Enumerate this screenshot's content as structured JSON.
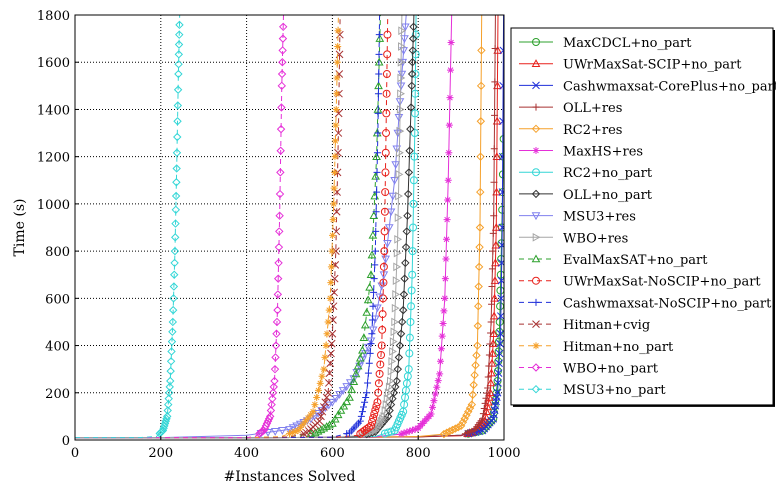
{
  "chart_data": {
    "type": "line",
    "title": "",
    "xlabel": "#Instances Solved",
    "ylabel": "Time (s)",
    "xlim": [
      0,
      1000
    ],
    "ylim": [
      0,
      1800
    ],
    "xticks": [
      0,
      200,
      400,
      600,
      800,
      1000
    ],
    "yticks": [
      0,
      200,
      400,
      600,
      800,
      1000,
      1200,
      1400,
      1600,
      1800
    ],
    "grid": "dotted",
    "legend_position": "right",
    "series": [
      {
        "name": "MaxCDCL+no_part",
        "color": "#2ca02c",
        "dash": "",
        "marker": "circle",
        "x": [
          0,
          200,
          400,
          600,
          800,
          900,
          950,
          975,
          985,
          990,
          995,
          1000
        ],
        "y": [
          10,
          10,
          10,
          11,
          14,
          20,
          40,
          90,
          250,
          500,
          900,
          1350
        ]
      },
      {
        "name": "UWrMaxSat-SCIP+no_part",
        "color": "#e8211c",
        "dash": "",
        "marker": "triangle",
        "x": [
          0,
          200,
          400,
          600,
          800,
          900,
          930,
          955,
          968,
          976,
          982,
          986
        ],
        "y": [
          10,
          10,
          10,
          11,
          13,
          18,
          35,
          80,
          200,
          450,
          900,
          1800
        ]
      },
      {
        "name": "Cashwmaxsat-CorePlus+no_part",
        "color": "#1f2fd9",
        "dash": "",
        "marker": "x",
        "x": [
          0,
          200,
          400,
          600,
          800,
          900,
          950,
          975,
          985,
          992,
          996,
          999
        ],
        "y": [
          10,
          10,
          10,
          11,
          14,
          20,
          40,
          90,
          200,
          450,
          900,
          1800
        ]
      },
      {
        "name": "OLL+res",
        "color": "#a83232",
        "dash": "",
        "marker": "plus",
        "x": [
          0,
          200,
          400,
          600,
          800,
          900,
          930,
          950,
          962,
          970,
          976,
          980
        ],
        "y": [
          10,
          10,
          10,
          11,
          13,
          20,
          40,
          90,
          220,
          500,
          950,
          1800
        ]
      },
      {
        "name": "RC2+res",
        "color": "#f5a02a",
        "dash": "",
        "marker": "diamond",
        "x": [
          0,
          200,
          400,
          600,
          800,
          860,
          900,
          925,
          938,
          944,
          948
        ],
        "y": [
          10,
          10,
          10,
          11,
          15,
          25,
          60,
          150,
          400,
          900,
          1800
        ]
      },
      {
        "name": "MaxHS+res",
        "color": "#e52fd8",
        "dash": "",
        "marker": "star",
        "x": [
          0,
          200,
          400,
          600,
          700,
          760,
          800,
          830,
          850,
          862,
          870,
          878
        ],
        "y": [
          10,
          10,
          10,
          11,
          14,
          25,
          50,
          110,
          280,
          600,
          1100,
          1800
        ]
      },
      {
        "name": "RC2+no_part",
        "color": "#33d6d6",
        "dash": "",
        "marker": "circle",
        "x": [
          0,
          200,
          400,
          600,
          700,
          745,
          765,
          778,
          786,
          792,
          795
        ],
        "y": [
          10,
          10,
          10,
          11,
          15,
          40,
          120,
          300,
          700,
          1300,
          1800
        ]
      },
      {
        "name": "OLL+no_part",
        "color": "#333333",
        "dash": "",
        "marker": "diamond",
        "x": [
          0,
          200,
          400,
          600,
          660,
          700,
          730,
          750,
          765,
          775,
          785,
          790
        ],
        "y": [
          10,
          10,
          10,
          11,
          15,
          35,
          100,
          250,
          550,
          950,
          1500,
          1800
        ]
      },
      {
        "name": "MSU3+res",
        "color": "#8080ee",
        "dash": "",
        "marker": "tri-down",
        "x": [
          0,
          200,
          400,
          500,
          550,
          600,
          650,
          690,
          720,
          745,
          760,
          772
        ],
        "y": [
          10,
          10,
          20,
          45,
          90,
          160,
          260,
          420,
          700,
          1100,
          1500,
          1800
        ]
      },
      {
        "name": "WBO+res",
        "color": "#a6a6a6",
        "dash": "",
        "marker": "tri-right",
        "x": [
          0,
          200,
          400,
          600,
          660,
          700,
          720,
          735,
          745,
          752,
          758,
          762
        ],
        "y": [
          10,
          10,
          10,
          11,
          18,
          40,
          100,
          250,
          500,
          850,
          1400,
          1800
        ]
      },
      {
        "name": "EvalMaxSAT+no_part",
        "color": "#2ca02c",
        "dash": "5,4",
        "marker": "triangle",
        "x": [
          0,
          200,
          400,
          500,
          560,
          600,
          640,
          670,
          690,
          703,
          712
        ],
        "y": [
          10,
          10,
          10,
          13,
          30,
          70,
          180,
          380,
          700,
          1200,
          1800
        ]
      },
      {
        "name": "UWrMaxSat-NoSCIP+no_part",
        "color": "#e8211c",
        "dash": "5,4",
        "marker": "circle",
        "x": [
          0,
          200,
          400,
          600,
          660,
          690,
          705,
          715,
          721,
          725,
          729
        ],
        "y": [
          10,
          10,
          10,
          11,
          20,
          60,
          160,
          400,
          800,
          1300,
          1800
        ]
      },
      {
        "name": "Cashwmaxsat-NoSCIP+no_part",
        "color": "#1f2fd9",
        "dash": "5,4",
        "marker": "plus",
        "x": [
          0,
          200,
          400,
          600,
          640,
          665,
          680,
          692,
          700,
          706,
          710
        ],
        "y": [
          10,
          10,
          10,
          12,
          30,
          80,
          200,
          450,
          800,
          1300,
          1800
        ]
      },
      {
        "name": "Hitman+cvig",
        "color": "#a83232",
        "dash": "5,4",
        "marker": "x",
        "x": [
          0,
          200,
          400,
          500,
          540,
          570,
          590,
          600,
          608,
          614,
          618
        ],
        "y": [
          10,
          10,
          10,
          13,
          30,
          80,
          200,
          450,
          800,
          1300,
          1800
        ]
      },
      {
        "name": "Hitman+no_part",
        "color": "#f5a02a",
        "dash": "5,4",
        "marker": "star",
        "x": [
          0,
          200,
          400,
          480,
          520,
          555,
          580,
          595,
          603,
          609,
          614
        ],
        "y": [
          10,
          10,
          10,
          14,
          40,
          120,
          300,
          600,
          1000,
          1400,
          1800
        ]
      },
      {
        "name": "WBO+no_part",
        "color": "#e52fd8",
        "dash": "5,4",
        "marker": "diamond",
        "x": [
          0,
          200,
          400,
          420,
          440,
          455,
          465,
          472,
          477,
          482,
          486
        ],
        "y": [
          10,
          10,
          10,
          15,
          40,
          100,
          250,
          550,
          950,
          1500,
          1800
        ]
      },
      {
        "name": "MSU3+no_part",
        "color": "#33d6d6",
        "dash": "5,4",
        "marker": "diamond",
        "x": [
          0,
          150,
          190,
          205,
          215,
          222,
          228,
          233,
          237,
          241,
          244
        ],
        "y": [
          10,
          10,
          15,
          40,
          100,
          250,
          500,
          800,
          1150,
          1550,
          1800
        ]
      }
    ]
  }
}
